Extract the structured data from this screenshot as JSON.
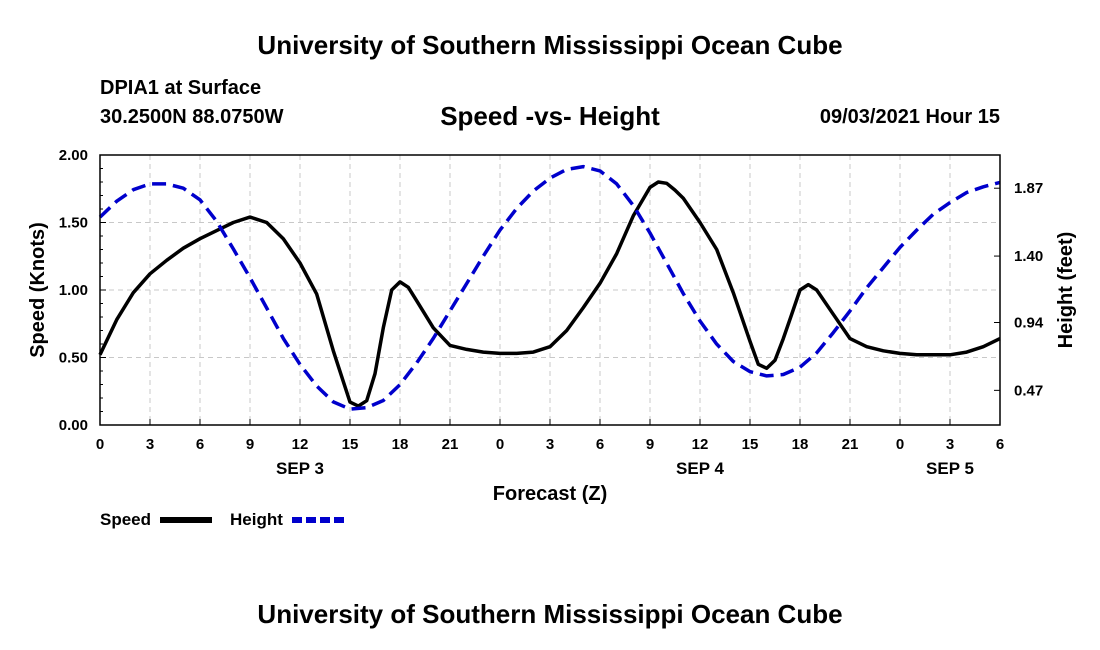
{
  "header": {
    "title": "University of Southern Mississippi Ocean Cube",
    "footer_title": "University of Southern Mississippi Ocean Cube",
    "station": "DPIA1 at Surface",
    "coordinates": "30.2500N  88.0750W",
    "chart_title": "Speed -vs- Height",
    "date": "09/03/2021 Hour 15"
  },
  "chart_data": {
    "type": "line",
    "title": "Speed -vs- Height",
    "xlabel": "Forecast (Z)",
    "ylabel_left": "Speed (Knots)",
    "ylabel_right": "Height (feet)",
    "x_hours": [
      0,
      54
    ],
    "x_tick_labels": [
      "0",
      "3",
      "6",
      "9",
      "12",
      "15",
      "18",
      "21",
      "0",
      "3",
      "6",
      "9",
      "12",
      "15",
      "18",
      "21",
      "0",
      "3",
      "6"
    ],
    "day_labels": [
      {
        "label": "SEP 3",
        "hour": 12
      },
      {
        "label": "SEP 4",
        "hour": 36
      },
      {
        "label": "SEP 5",
        "hour": 51
      }
    ],
    "ylim_left": [
      0,
      2
    ],
    "y_ticks_left": [
      "0.00",
      "0.50",
      "1.00",
      "1.50",
      "2.00"
    ],
    "ylim_right": [
      0.23,
      2.1
    ],
    "y_ticks_right": [
      {
        "value": 0.47,
        "label": "0.47"
      },
      {
        "value": 0.94,
        "label": "0.94"
      },
      {
        "value": 1.4,
        "label": "1.40"
      },
      {
        "value": 1.87,
        "label": "1.87"
      }
    ],
    "grid": true,
    "legend_position": "bottom-left",
    "series": [
      {
        "name": "Speed",
        "axis": "left",
        "color": "#000000",
        "dash": "solid",
        "x": [
          0,
          1,
          2,
          3,
          4,
          5,
          6,
          7,
          8,
          9,
          10,
          11,
          12,
          13,
          14,
          15,
          15.5,
          16,
          16.5,
          17,
          17.5,
          18,
          18.5,
          19,
          20,
          21,
          22,
          23,
          24,
          25,
          26,
          27,
          28,
          29,
          30,
          31,
          32,
          33,
          33.5,
          34,
          34.5,
          35,
          36,
          37,
          38,
          39,
          39.5,
          40,
          40.5,
          41,
          41.5,
          42,
          42.5,
          43,
          44,
          45,
          46,
          47,
          48,
          49,
          50,
          51,
          52,
          53,
          54
        ],
        "values": [
          0.52,
          0.78,
          0.98,
          1.12,
          1.22,
          1.31,
          1.38,
          1.44,
          1.5,
          1.54,
          1.5,
          1.38,
          1.2,
          0.97,
          0.55,
          0.17,
          0.14,
          0.18,
          0.38,
          0.72,
          1.0,
          1.06,
          1.02,
          0.92,
          0.72,
          0.59,
          0.56,
          0.54,
          0.53,
          0.53,
          0.54,
          0.58,
          0.7,
          0.87,
          1.05,
          1.27,
          1.55,
          1.76,
          1.8,
          1.79,
          1.74,
          1.68,
          1.5,
          1.3,
          0.98,
          0.62,
          0.45,
          0.42,
          0.48,
          0.64,
          0.82,
          1.0,
          1.04,
          1.0,
          0.82,
          0.64,
          0.58,
          0.55,
          0.53,
          0.52,
          0.52,
          0.52,
          0.54,
          0.58,
          0.64
        ]
      },
      {
        "name": "Height",
        "axis": "right",
        "color": "#0000cc",
        "dash": "dashed",
        "x": [
          0,
          1,
          2,
          3,
          4,
          5,
          6,
          7,
          8,
          9,
          10,
          11,
          12,
          13,
          14,
          15,
          16,
          17,
          18,
          19,
          20,
          21,
          22,
          23,
          24,
          25,
          26,
          27,
          28,
          29,
          30,
          31,
          32,
          33,
          34,
          35,
          36,
          37,
          38,
          39,
          40,
          41,
          42,
          43,
          44,
          45,
          46,
          47,
          48,
          49,
          50,
          51,
          52,
          53,
          54
        ],
        "values": [
          1.67,
          1.78,
          1.86,
          1.9,
          1.9,
          1.87,
          1.79,
          1.64,
          1.45,
          1.25,
          1.04,
          0.83,
          0.65,
          0.5,
          0.39,
          0.34,
          0.35,
          0.4,
          0.51,
          0.66,
          0.83,
          1.02,
          1.21,
          1.4,
          1.58,
          1.73,
          1.85,
          1.94,
          2.0,
          2.02,
          1.99,
          1.9,
          1.75,
          1.56,
          1.35,
          1.14,
          0.95,
          0.79,
          0.67,
          0.6,
          0.57,
          0.58,
          0.63,
          0.73,
          0.87,
          1.02,
          1.18,
          1.32,
          1.46,
          1.58,
          1.69,
          1.77,
          1.84,
          1.88,
          1.91
        ]
      }
    ]
  }
}
